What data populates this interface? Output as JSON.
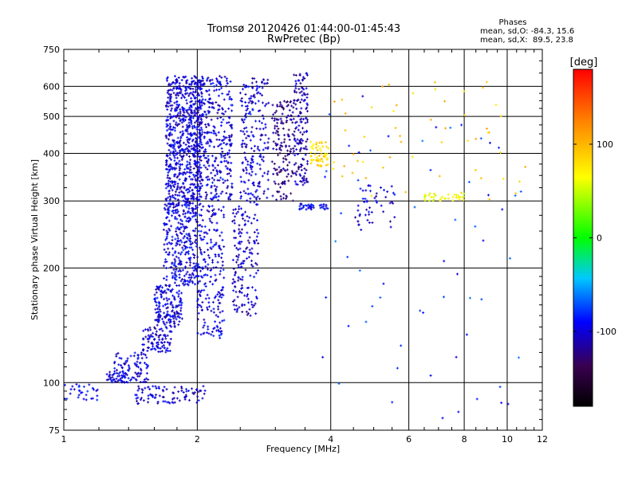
{
  "chart_data": {
    "type": "scatter",
    "title": "Tromsø 20120426 01:44:00-01:45:43",
    "subtitle": "RwPretec (Bp)",
    "xlabel": "Frequency [MHz]",
    "ylabel": "Stationary phase Virtual Height [km]",
    "x_scale": "log",
    "y_scale": "log",
    "xlim": [
      1,
      12
    ],
    "ylim": [
      75,
      750
    ],
    "x_ticks": [
      1,
      2,
      4,
      6,
      8,
      10,
      12
    ],
    "y_ticks": [
      75,
      100,
      200,
      300,
      400,
      500,
      600,
      750
    ],
    "grid": true,
    "phases_box": {
      "title": "Phases",
      "line1": "mean, sd,O: -84.3, 15.6",
      "line2": "mean, sd,X:  89.5, 23.8"
    },
    "colorbar": {
      "label": "[deg]",
      "range": [
        -180,
        180
      ],
      "ticks": [
        100,
        0,
        -100
      ]
    },
    "clusters": [
      {
        "x": [
          1.7,
          2.05
        ],
        "y": [
          300,
          640
        ],
        "phase": -100,
        "n": 700
      },
      {
        "x": [
          1.68,
          2.0
        ],
        "y": [
          180,
          300
        ],
        "phase": -98,
        "n": 320
      },
      {
        "x": [
          1.6,
          1.85
        ],
        "y": [
          140,
          180
        ],
        "phase": -100,
        "n": 160
      },
      {
        "x": [
          1.5,
          1.75
        ],
        "y": [
          120,
          140
        ],
        "phase": -102,
        "n": 90
      },
      {
        "x": [
          1.3,
          1.55
        ],
        "y": [
          100,
          120
        ],
        "phase": -100,
        "n": 90
      },
      {
        "x": [
          1.25,
          1.4
        ],
        "y": [
          100,
          108
        ],
        "phase": -100,
        "n": 40
      },
      {
        "x": [
          1.45,
          2.1
        ],
        "y": [
          88,
          98
        ],
        "phase": -100,
        "n": 90
      },
      {
        "x": [
          1.0,
          1.2
        ],
        "y": [
          90,
          100
        ],
        "phase": -95,
        "n": 30
      },
      {
        "x": [
          2.0,
          2.3
        ],
        "y": [
          130,
          300
        ],
        "phase": -100,
        "n": 220
      },
      {
        "x": [
          2.0,
          2.4
        ],
        "y": [
          300,
          640
        ],
        "phase": -100,
        "n": 350
      },
      {
        "x": [
          2.4,
          2.75
        ],
        "y": [
          150,
          300
        ],
        "phase": -105,
        "n": 160
      },
      {
        "x": [
          2.5,
          2.9
        ],
        "y": [
          300,
          640
        ],
        "phase": -100,
        "n": 200
      },
      {
        "x": [
          2.95,
          3.3
        ],
        "y": [
          300,
          550
        ],
        "phase": -125,
        "n": 150
      },
      {
        "x": [
          3.3,
          3.55
        ],
        "y": [
          330,
          650
        ],
        "phase": -110,
        "n": 150
      },
      {
        "x": [
          3.4,
          3.95
        ],
        "y": [
          285,
          295
        ],
        "phase": -95,
        "n": 40
      },
      {
        "x": [
          3.6,
          3.95
        ],
        "y": [
          370,
          430
        ],
        "phase": 85,
        "n": 60
      },
      {
        "x": [
          4.5,
          5.6
        ],
        "y": [
          250,
          330
        ],
        "phase": -100,
        "n": 50
      },
      {
        "x": [
          6.5,
          8.0
        ],
        "y": [
          300,
          315
        ],
        "phase": 60,
        "n": 40
      },
      {
        "x": [
          4.0,
          11.0
        ],
        "y": [
          300,
          620
        ],
        "phase": 90,
        "n": 55
      },
      {
        "x": [
          3.8,
          11.0
        ],
        "y": [
          80,
          620
        ],
        "phase": -80,
        "n": 60
      }
    ]
  }
}
